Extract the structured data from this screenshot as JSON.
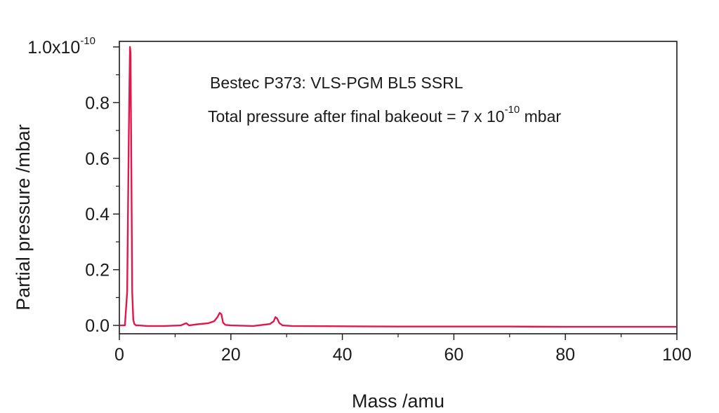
{
  "chart_data": {
    "type": "line",
    "title": "",
    "xlabel": "Mass /amu",
    "ylabel": "Partial pressure /mbar",
    "xlim": [
      0,
      100
    ],
    "ylim": [
      -0.03,
      1.02
    ],
    "y_scale_exponent": "-10",
    "x_ticks": [
      "0",
      "20",
      "40",
      "60",
      "80",
      "100"
    ],
    "y_ticks": [
      "0.0",
      "0.2",
      "0.4",
      "0.6",
      "0.8",
      "1.0x10"
    ],
    "y_tick_values": [
      0.0,
      0.2,
      0.4,
      0.6,
      0.8,
      1.0
    ],
    "x_tick_values": [
      0,
      20,
      40,
      60,
      80,
      100
    ],
    "grid": false,
    "annotations": {
      "line1": "Bestec P373: VLS-PGM BL5 SSRL",
      "line2_prefix": "Total pressure after final bakeout = 7 x 10",
      "line2_exponent": "-10",
      "line2_suffix": " mbar"
    },
    "series": [
      {
        "color": "#e0194c",
        "x": [
          0,
          1.0,
          1.4,
          1.7,
          1.9,
          2.0,
          2.1,
          2.3,
          2.5,
          2.7,
          3.0,
          3.5,
          5,
          8,
          11,
          12,
          12.5,
          14,
          16,
          17,
          17.6,
          18.0,
          18.3,
          18.6,
          19.0,
          20,
          24,
          27,
          27.7,
          28.0,
          28.3,
          28.7,
          29.3,
          31,
          40,
          50,
          60,
          70,
          80,
          90,
          100
        ],
        "y": [
          0.0,
          0.0,
          0.12,
          0.7,
          1.0,
          0.98,
          0.7,
          0.12,
          0.02,
          0.005,
          0.0,
          0.0,
          -0.002,
          -0.002,
          0.0,
          0.008,
          0.0,
          0.004,
          0.008,
          0.015,
          0.03,
          0.045,
          0.04,
          0.01,
          0.002,
          0.0,
          -0.002,
          0.005,
          0.015,
          0.03,
          0.025,
          0.008,
          0.0,
          -0.002,
          -0.003,
          -0.004,
          -0.004,
          -0.004,
          -0.005,
          -0.005,
          -0.005
        ]
      }
    ]
  }
}
